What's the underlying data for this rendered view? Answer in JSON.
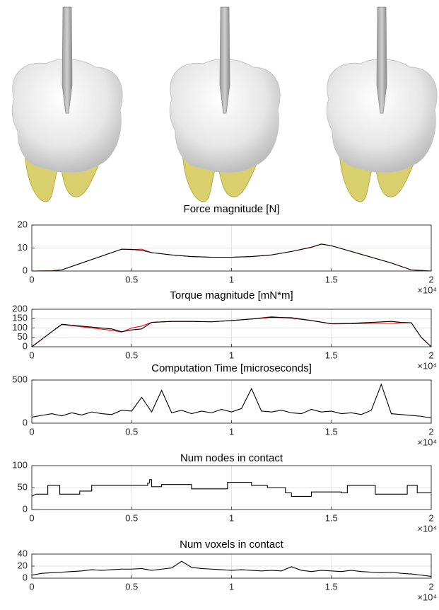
{
  "chart_data": [
    {
      "type": "line",
      "title": "Force magnitude [N]",
      "x_exponent": "×10⁴",
      "x": [
        0,
        0.1,
        0.15,
        0.2,
        0.3,
        0.4,
        0.45,
        0.5,
        0.55,
        0.6,
        0.7,
        0.8,
        0.9,
        1,
        1.1,
        1.2,
        1.3,
        1.4,
        1.45,
        1.5,
        1.6,
        1.7,
        1.8,
        1.9,
        2
      ],
      "series": [
        {
          "color": "#ff0000",
          "values": [
            0,
            0.1,
            0.5,
            2,
            5,
            8,
            9.5,
            9.3,
            9.5,
            8,
            7,
            6.3,
            6,
            6,
            6.3,
            7,
            8.5,
            10.4,
            11.7,
            11,
            8.5,
            6,
            3.5,
            0.5,
            0
          ]
        },
        {
          "color": "#000000",
          "values": [
            0,
            0.1,
            0.5,
            2,
            5,
            8,
            9.5,
            9.4,
            9,
            8,
            7,
            6.3,
            6,
            6,
            6.3,
            7,
            8.5,
            10.3,
            11.7,
            11,
            8.5,
            6,
            3.5,
            0.5,
            0
          ]
        }
      ],
      "xlim": [
        0,
        2
      ],
      "xticks": [
        0,
        0.5,
        1,
        1.5,
        2
      ],
      "ylim": [
        0,
        20
      ],
      "yticks": [
        0,
        10,
        20
      ],
      "grid": true
    },
    {
      "type": "line",
      "title": "Torque magnitude [mN*m]",
      "x_exponent": "×10⁴",
      "x": [
        0,
        0.05,
        0.1,
        0.15,
        0.2,
        0.3,
        0.4,
        0.45,
        0.5,
        0.55,
        0.6,
        0.7,
        0.8,
        0.9,
        1,
        1.1,
        1.2,
        1.3,
        1.4,
        1.5,
        1.6,
        1.7,
        1.8,
        1.85,
        1.9,
        1.95,
        2
      ],
      "series": [
        {
          "color": "#ff0000",
          "values": [
            0,
            40,
            80,
            118,
            113,
            100,
            88,
            78,
            100,
            110,
            130,
            135,
            135,
            133,
            140,
            148,
            160,
            152,
            140,
            122,
            123,
            125,
            125,
            128,
            128,
            50,
            0
          ]
        },
        {
          "color": "#000000",
          "values": [
            0,
            40,
            80,
            120,
            115,
            105,
            95,
            80,
            90,
            95,
            130,
            135,
            135,
            133,
            140,
            148,
            157,
            155,
            140,
            123,
            125,
            130,
            135,
            130,
            128,
            50,
            0
          ]
        }
      ],
      "xlim": [
        0,
        2
      ],
      "xticks": [
        0,
        0.5,
        1,
        1.5,
        2
      ],
      "ylim": [
        0,
        200
      ],
      "yticks": [
        0,
        50,
        100,
        150,
        200
      ],
      "grid": true
    },
    {
      "type": "line",
      "title": "Computation Time [microseconds]",
      "x_exponent": "×10⁴",
      "x": [
        0,
        0.05,
        0.1,
        0.15,
        0.2,
        0.25,
        0.3,
        0.35,
        0.4,
        0.45,
        0.5,
        0.55,
        0.6,
        0.65,
        0.7,
        0.75,
        0.8,
        0.85,
        0.9,
        0.95,
        1,
        1.05,
        1.1,
        1.15,
        1.2,
        1.25,
        1.3,
        1.35,
        1.4,
        1.45,
        1.5,
        1.55,
        1.6,
        1.65,
        1.7,
        1.75,
        1.8,
        1.85,
        1.9,
        1.95,
        2
      ],
      "series": [
        {
          "color": "#000000",
          "values": [
            70,
            90,
            110,
            85,
            120,
            95,
            130,
            110,
            100,
            150,
            140,
            300,
            130,
            380,
            120,
            150,
            110,
            140,
            120,
            160,
            130,
            170,
            400,
            140,
            130,
            150,
            120,
            110,
            160,
            130,
            140,
            110,
            120,
            100,
            150,
            450,
            110,
            100,
            90,
            80,
            60
          ]
        }
      ],
      "xlim": [
        0,
        2
      ],
      "xticks": [
        0,
        0.5,
        1,
        1.5,
        2
      ],
      "ylim": [
        0,
        500
      ],
      "yticks": [
        0,
        500
      ],
      "grid": true
    },
    {
      "type": "line",
      "title": "Num nodes in contact",
      "x_exponent": "×10⁴",
      "x": [
        0,
        0.02,
        0.08,
        0.08,
        0.14,
        0.14,
        0.24,
        0.24,
        0.3,
        0.3,
        0.58,
        0.58,
        0.59,
        0.59,
        0.6,
        0.6,
        0.65,
        0.65,
        0.8,
        0.8,
        0.98,
        0.98,
        1.1,
        1.1,
        1.18,
        1.18,
        1.27,
        1.27,
        1.3,
        1.3,
        1.4,
        1.4,
        1.55,
        1.55,
        1.58,
        1.58,
        1.72,
        1.72,
        1.88,
        1.88,
        1.93,
        1.93,
        2
      ],
      "series": [
        {
          "color": "#000000",
          "values": [
            30,
            35,
            35,
            55,
            55,
            35,
            35,
            42,
            42,
            55,
            55,
            60,
            60,
            68,
            68,
            52,
            52,
            57,
            57,
            47,
            47,
            62,
            62,
            55,
            55,
            50,
            50,
            38,
            38,
            30,
            30,
            40,
            40,
            38,
            38,
            55,
            55,
            35,
            35,
            55,
            55,
            38,
            38
          ]
        }
      ],
      "xlim": [
        0,
        2
      ],
      "xticks": [
        0,
        0.5,
        1,
        1.5,
        2
      ],
      "ylim": [
        0,
        100
      ],
      "yticks": [
        0,
        50,
        100
      ],
      "grid": true
    },
    {
      "type": "line",
      "title": "Num voxels in contact",
      "x_exponent": "×10⁴",
      "x": [
        0,
        0.05,
        0.1,
        0.15,
        0.2,
        0.25,
        0.3,
        0.35,
        0.4,
        0.45,
        0.5,
        0.55,
        0.6,
        0.65,
        0.7,
        0.75,
        0.8,
        0.85,
        0.9,
        0.95,
        1,
        1.05,
        1.1,
        1.15,
        1.2,
        1.25,
        1.3,
        1.35,
        1.4,
        1.45,
        1.5,
        1.55,
        1.6,
        1.65,
        1.7,
        1.75,
        1.8,
        1.85,
        1.9,
        1.95,
        2
      ],
      "series": [
        {
          "color": "#000000",
          "values": [
            5,
            8,
            9,
            10,
            11,
            12,
            14,
            13,
            14,
            15,
            15,
            16,
            13,
            15,
            17,
            28,
            18,
            16,
            15,
            14,
            13,
            14,
            13,
            12,
            13,
            12,
            19,
            13,
            11,
            13,
            12,
            11,
            13,
            11,
            10,
            9,
            10,
            8,
            7,
            5,
            3
          ]
        }
      ],
      "xlim": [
        0,
        2
      ],
      "xticks": [
        0,
        0.5,
        1,
        1.5,
        2
      ],
      "ylim": [
        0,
        40
      ],
      "yticks": [
        0,
        20,
        40
      ],
      "grid": true
    }
  ]
}
